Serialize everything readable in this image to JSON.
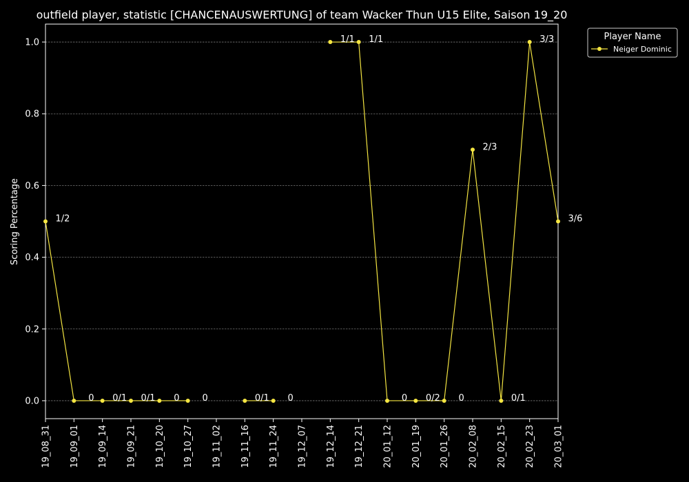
{
  "chart_data": {
    "type": "line",
    "title": "outfield player, statistic [CHANCENAUSWERTUNG] of team Wacker Thun U15 Elite, Saison 19_20",
    "xlabel": "",
    "ylabel": "Scoring Percentage",
    "categories": [
      "19_08_31",
      "19_09_01",
      "19_09_14",
      "19_09_21",
      "19_10_20",
      "19_10_27",
      "19_11_02",
      "19_11_16",
      "19_11_24",
      "19_12_07",
      "19_12_14",
      "19_12_21",
      "20_01_12",
      "20_01_19",
      "20_01_26",
      "20_02_08",
      "20_02_15",
      "20_02_23",
      "20_03_01"
    ],
    "yticks": [
      "0.0",
      "0.2",
      "0.4",
      "0.6",
      "0.8",
      "1.0"
    ],
    "ylim": [
      -0.05,
      1.05
    ],
    "grid": true,
    "legend": {
      "title": "Player Name",
      "position": "top-right-outside"
    },
    "series": [
      {
        "name": "Neiger Dominic",
        "color": "#f5e642",
        "values": [
          0.5,
          0.0,
          0.0,
          0.0,
          0.0,
          0.0,
          null,
          0.0,
          0.0,
          null,
          1.0,
          1.0,
          0.0,
          0.0,
          0.0,
          0.7,
          0.0,
          1.0,
          0.5
        ],
        "labels": [
          "1/2",
          "0",
          "0/1",
          "0/1",
          "0",
          "0",
          null,
          "0/1",
          "0",
          null,
          "1/1",
          "1/1",
          "0",
          "0/2",
          "0",
          "2/3",
          "0/1",
          "3/3",
          "3/6"
        ]
      }
    ]
  }
}
